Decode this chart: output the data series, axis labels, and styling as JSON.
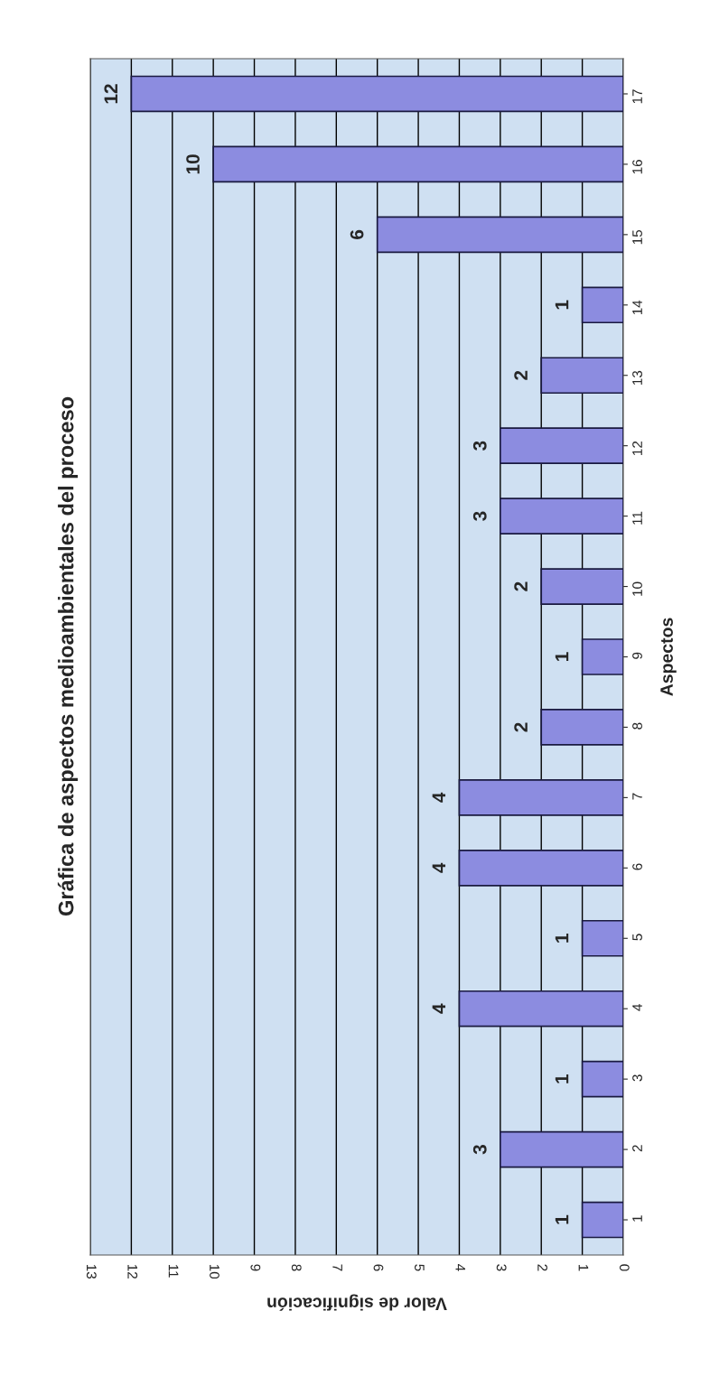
{
  "chart_data": {
    "type": "bar",
    "orientation": "horizontal",
    "title": "Gráfica de aspectos medioambientales del proceso",
    "xlabel": "Valor de significación",
    "ylabel": "Aspectos",
    "categories": [
      "17",
      "16",
      "15",
      "14",
      "13",
      "12",
      "11",
      "10",
      "9",
      "8",
      "7",
      "6",
      "5",
      "4",
      "3",
      "2",
      "1"
    ],
    "values": [
      12,
      10,
      6,
      1,
      2,
      3,
      3,
      2,
      1,
      2,
      4,
      4,
      1,
      4,
      1,
      3,
      1
    ],
    "color": "#8c8ce0",
    "xlim": [
      13,
      0
    ],
    "xticks": [
      13,
      12,
      11,
      10,
      9,
      8,
      7,
      6,
      5,
      4,
      3,
      2,
      1,
      0
    ],
    "grid": "x",
    "data_labels": true
  }
}
